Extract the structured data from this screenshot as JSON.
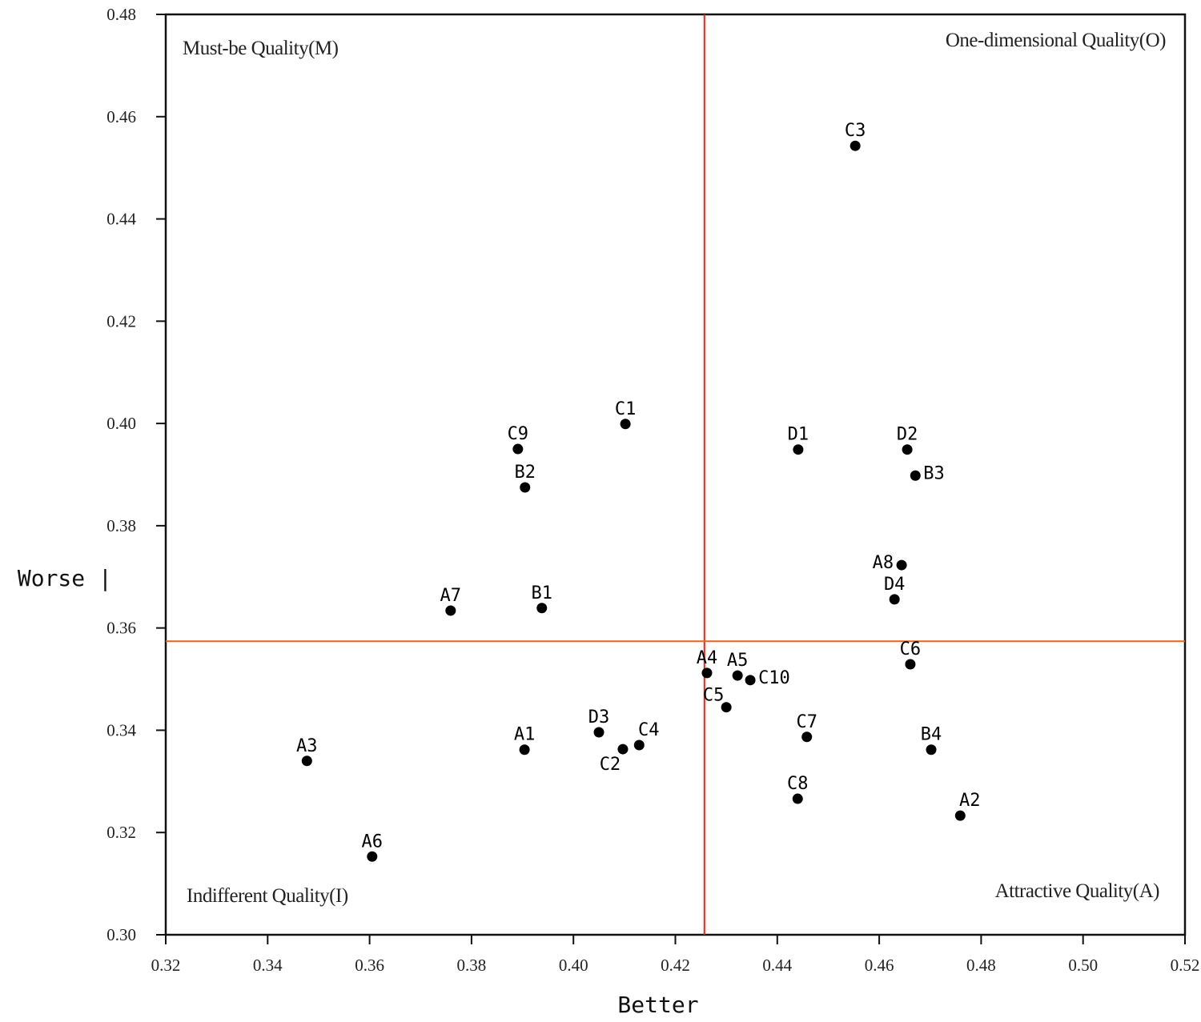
{
  "chart_data": {
    "type": "scatter",
    "title": "",
    "xlabel": "Better",
    "ylabel": "| Worse |",
    "xlim": [
      0.32,
      0.52
    ],
    "ylim": [
      0.3,
      0.48
    ],
    "xticks": [
      "0.32",
      "0.34",
      "0.36",
      "0.38",
      "0.40",
      "0.42",
      "0.44",
      "0.46",
      "0.48",
      "0.50",
      "0.52"
    ],
    "yticks": [
      "0.30",
      "0.32",
      "0.34",
      "0.36",
      "0.38",
      "0.40",
      "0.42",
      "0.44",
      "0.46",
      "0.48"
    ],
    "grid": false,
    "reference_lines": {
      "x": 0.4257,
      "y": 0.3574,
      "x_color": "#e8231a",
      "y_color": "#e8641a"
    },
    "quadrants": {
      "top_left": "Must-be Quality(M)",
      "top_right": "One-dimensional Quality(O)",
      "bottom_left": "Indifferent Quality(I)",
      "bottom_right": "Attractive Quality(A)"
    },
    "points": [
      {
        "label": "C3",
        "x": 0.4553,
        "y": 0.4543,
        "pos": "above"
      },
      {
        "label": "C1",
        "x": 0.4102,
        "y": 0.3999,
        "pos": "above"
      },
      {
        "label": "C9",
        "x": 0.3891,
        "y": 0.395,
        "pos": "above"
      },
      {
        "label": "B2",
        "x": 0.3905,
        "y": 0.3875,
        "pos": "above"
      },
      {
        "label": "D1",
        "x": 0.4441,
        "y": 0.3949,
        "pos": "above"
      },
      {
        "label": "D2",
        "x": 0.4655,
        "y": 0.3949,
        "pos": "above"
      },
      {
        "label": "B3",
        "x": 0.4671,
        "y": 0.3898,
        "pos": "right"
      },
      {
        "label": "A8",
        "x": 0.4644,
        "y": 0.3723,
        "pos": "left"
      },
      {
        "label": "D4",
        "x": 0.463,
        "y": 0.3656,
        "pos": "above"
      },
      {
        "label": "A7",
        "x": 0.3759,
        "y": 0.3634,
        "pos": "above"
      },
      {
        "label": "B1",
        "x": 0.3938,
        "y": 0.3639,
        "pos": "above"
      },
      {
        "label": "A4",
        "x": 0.4262,
        "y": 0.3512,
        "pos": "above"
      },
      {
        "label": "A5",
        "x": 0.4322,
        "y": 0.3507,
        "pos": "above"
      },
      {
        "label": "C10",
        "x": 0.4347,
        "y": 0.3498,
        "pos": "right"
      },
      {
        "label": "C6",
        "x": 0.4661,
        "y": 0.3529,
        "pos": "above"
      },
      {
        "label": "C5",
        "x": 0.43,
        "y": 0.3445,
        "pos": "aboveleft"
      },
      {
        "label": "D3",
        "x": 0.405,
        "y": 0.3396,
        "pos": "above"
      },
      {
        "label": "C4",
        "x": 0.4129,
        "y": 0.3371,
        "pos": "aboveright"
      },
      {
        "label": "C2",
        "x": 0.4097,
        "y": 0.3363,
        "pos": "belowleft"
      },
      {
        "label": "A1",
        "x": 0.3904,
        "y": 0.3362,
        "pos": "above"
      },
      {
        "label": "C7",
        "x": 0.4458,
        "y": 0.3387,
        "pos": "above"
      },
      {
        "label": "B4",
        "x": 0.4702,
        "y": 0.3362,
        "pos": "above"
      },
      {
        "label": "C8",
        "x": 0.444,
        "y": 0.3266,
        "pos": "above"
      },
      {
        "label": "A2",
        "x": 0.4759,
        "y": 0.3233,
        "pos": "aboveright"
      },
      {
        "label": "A3",
        "x": 0.3477,
        "y": 0.334,
        "pos": "above"
      },
      {
        "label": "A6",
        "x": 0.3605,
        "y": 0.3153,
        "pos": "above"
      }
    ]
  }
}
